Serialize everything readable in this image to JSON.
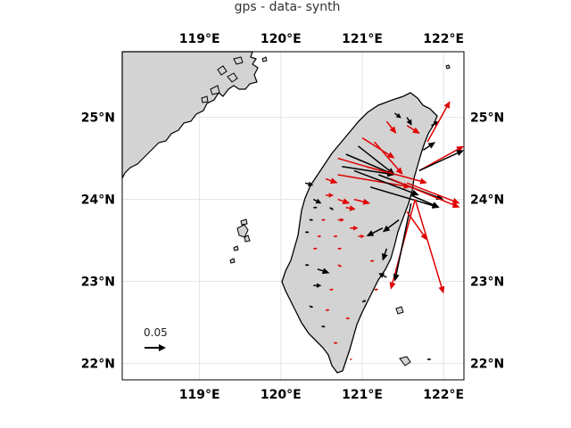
{
  "title": "gps - data- synth",
  "map": {
    "lon_range": [
      118.05,
      122.25
    ],
    "lat_range": [
      21.8,
      25.8
    ],
    "lon_ticks": [
      119,
      120,
      121,
      122
    ],
    "lat_ticks": [
      22,
      23,
      24,
      25
    ],
    "lon_tick_labels": [
      "119°E",
      "120°E",
      "121°E",
      "122°E"
    ],
    "lat_tick_labels": [
      "22°N",
      "23°N",
      "24°N",
      "25°N"
    ],
    "land_color": "#d3d3d3",
    "coast_color": "#000000",
    "grid": true
  },
  "reference_vector": {
    "label": "0.05",
    "value": 0.05
  },
  "colors": {
    "black": "#000000",
    "red": "#e00000"
  },
  "vectors": [
    {
      "lon": 121.4,
      "lat": 25.05,
      "dlon": 0.08,
      "dlat": -0.06,
      "color": "black"
    },
    {
      "lon": 121.55,
      "lat": 25.0,
      "dlon": 0.06,
      "dlat": -0.1,
      "color": "black"
    },
    {
      "lon": 121.3,
      "lat": 24.95,
      "dlon": 0.12,
      "dlat": -0.15,
      "color": "red"
    },
    {
      "lon": 121.55,
      "lat": 24.9,
      "dlon": 0.16,
      "dlat": -0.1,
      "color": "red"
    },
    {
      "lon": 121.85,
      "lat": 24.9,
      "dlon": 0.1,
      "dlat": 0.05,
      "color": "black"
    },
    {
      "lon": 121.8,
      "lat": 24.7,
      "dlon": 0.28,
      "dlat": 0.5,
      "color": "red"
    },
    {
      "lon": 121.75,
      "lat": 24.6,
      "dlon": 0.15,
      "dlat": 0.1,
      "color": "black"
    },
    {
      "lon": 121.7,
      "lat": 24.35,
      "dlon": 0.55,
      "dlat": 0.3,
      "color": "red"
    },
    {
      "lon": 121.7,
      "lat": 24.35,
      "dlon": 0.55,
      "dlat": 0.25,
      "color": "black"
    },
    {
      "lon": 121.0,
      "lat": 24.75,
      "dlon": 0.4,
      "dlat": -0.25,
      "color": "red"
    },
    {
      "lon": 120.95,
      "lat": 24.65,
      "dlon": 0.45,
      "dlat": -0.35,
      "color": "black"
    },
    {
      "lon": 121.15,
      "lat": 24.7,
      "dlon": 0.35,
      "dlat": -0.4,
      "color": "red"
    },
    {
      "lon": 120.8,
      "lat": 24.55,
      "dlon": 0.6,
      "dlat": -0.25,
      "color": "black"
    },
    {
      "lon": 120.7,
      "lat": 24.5,
      "dlon": 0.7,
      "dlat": -0.2,
      "color": "red"
    },
    {
      "lon": 120.75,
      "lat": 24.4,
      "dlon": 0.65,
      "dlat": -0.1,
      "color": "black"
    },
    {
      "lon": 120.7,
      "lat": 24.3,
      "dlon": 0.9,
      "dlat": -0.15,
      "color": "red"
    },
    {
      "lon": 120.9,
      "lat": 24.35,
      "dlon": 0.8,
      "dlat": -0.3,
      "color": "black"
    },
    {
      "lon": 121.05,
      "lat": 24.4,
      "dlon": 0.75,
      "dlat": -0.2,
      "color": "red"
    },
    {
      "lon": 121.2,
      "lat": 24.3,
      "dlon": 0.8,
      "dlat": -0.3,
      "color": "black"
    },
    {
      "lon": 121.35,
      "lat": 24.25,
      "dlon": 0.85,
      "dlat": -0.35,
      "color": "red"
    },
    {
      "lon": 121.1,
      "lat": 24.15,
      "dlon": 0.85,
      "dlat": -0.25,
      "color": "black"
    },
    {
      "lon": 121.55,
      "lat": 24.2,
      "dlon": 0.65,
      "dlat": -0.25,
      "color": "red"
    },
    {
      "lon": 121.6,
      "lat": 24.05,
      "dlon": 0.35,
      "dlat": -0.15,
      "color": "black"
    },
    {
      "lon": 121.65,
      "lat": 24.0,
      "dlon": -0.3,
      "dlat": -1.1,
      "color": "red"
    },
    {
      "lon": 121.65,
      "lat": 24.0,
      "dlon": 0.35,
      "dlat": -1.15,
      "color": "red"
    },
    {
      "lon": 121.6,
      "lat": 23.95,
      "dlon": -0.2,
      "dlat": -0.95,
      "color": "black"
    },
    {
      "lon": 121.55,
      "lat": 23.85,
      "dlon": 0.25,
      "dlat": -0.35,
      "color": "red"
    },
    {
      "lon": 121.45,
      "lat": 23.75,
      "dlon": -0.2,
      "dlat": -0.15,
      "color": "black"
    },
    {
      "lon": 121.25,
      "lat": 23.65,
      "dlon": -0.2,
      "dlat": -0.1,
      "color": "black"
    },
    {
      "lon": 121.3,
      "lat": 23.4,
      "dlon": -0.05,
      "dlat": -0.15,
      "color": "black"
    },
    {
      "lon": 121.3,
      "lat": 23.05,
      "dlon": -0.1,
      "dlat": 0.05,
      "color": "black"
    },
    {
      "lon": 120.4,
      "lat": 24.0,
      "dlon": 0.1,
      "dlat": -0.05,
      "color": "black"
    },
    {
      "lon": 120.4,
      "lat": 23.9,
      "dlon": 0.05,
      "dlat": 0.0,
      "color": "black"
    },
    {
      "lon": 120.55,
      "lat": 24.05,
      "dlon": 0.1,
      "dlat": 0.0,
      "color": "red"
    },
    {
      "lon": 120.7,
      "lat": 24.0,
      "dlon": 0.15,
      "dlat": -0.05,
      "color": "red"
    },
    {
      "lon": 120.9,
      "lat": 24.0,
      "dlon": 0.2,
      "dlat": -0.05,
      "color": "red"
    },
    {
      "lon": 120.6,
      "lat": 23.9,
      "dlon": 0.05,
      "dlat": -0.03,
      "color": "black"
    },
    {
      "lon": 120.8,
      "lat": 23.9,
      "dlon": 0.12,
      "dlat": -0.02,
      "color": "red"
    },
    {
      "lon": 120.7,
      "lat": 23.75,
      "dlon": 0.08,
      "dlat": 0.0,
      "color": "red"
    },
    {
      "lon": 120.5,
      "lat": 23.75,
      "dlon": 0.05,
      "dlat": 0.0,
      "color": "red"
    },
    {
      "lon": 120.35,
      "lat": 23.75,
      "dlon": 0.05,
      "dlat": 0.0,
      "color": "black"
    },
    {
      "lon": 120.85,
      "lat": 23.65,
      "dlon": 0.1,
      "dlat": 0.0,
      "color": "red"
    },
    {
      "lon": 120.65,
      "lat": 23.55,
      "dlon": 0.05,
      "dlat": 0.0,
      "color": "red"
    },
    {
      "lon": 120.45,
      "lat": 23.55,
      "dlon": 0.05,
      "dlat": 0.0,
      "color": "red"
    },
    {
      "lon": 120.3,
      "lat": 23.6,
      "dlon": 0.05,
      "dlat": 0.0,
      "color": "black"
    },
    {
      "lon": 120.95,
      "lat": 23.55,
      "dlon": 0.08,
      "dlat": 0.0,
      "color": "red"
    },
    {
      "lon": 120.7,
      "lat": 23.4,
      "dlon": 0.05,
      "dlat": 0.0,
      "color": "red"
    },
    {
      "lon": 120.4,
      "lat": 23.4,
      "dlon": 0.05,
      "dlat": 0.0,
      "color": "red"
    },
    {
      "lon": 120.3,
      "lat": 23.2,
      "dlon": 0.05,
      "dlat": 0.0,
      "color": "black"
    },
    {
      "lon": 120.45,
      "lat": 23.15,
      "dlon": 0.15,
      "dlat": -0.05,
      "color": "black"
    },
    {
      "lon": 120.7,
      "lat": 23.2,
      "dlon": 0.05,
      "dlat": -0.02,
      "color": "red"
    },
    {
      "lon": 120.4,
      "lat": 22.95,
      "dlon": 0.1,
      "dlat": 0.0,
      "color": "black"
    },
    {
      "lon": 120.6,
      "lat": 22.9,
      "dlon": 0.05,
      "dlat": 0.0,
      "color": "red"
    },
    {
      "lon": 120.35,
      "lat": 22.7,
      "dlon": 0.05,
      "dlat": -0.02,
      "color": "black"
    },
    {
      "lon": 120.55,
      "lat": 22.65,
      "dlon": 0.05,
      "dlat": 0.0,
      "color": "red"
    },
    {
      "lon": 120.5,
      "lat": 22.45,
      "dlon": 0.05,
      "dlat": 0.0,
      "color": "black"
    },
    {
      "lon": 120.8,
      "lat": 22.55,
      "dlon": 0.05,
      "dlat": 0.0,
      "color": "red"
    },
    {
      "lon": 120.65,
      "lat": 22.25,
      "dlon": 0.05,
      "dlat": 0.0,
      "color": "red"
    },
    {
      "lon": 120.85,
      "lat": 22.05,
      "dlon": 0.03,
      "dlat": 0.0,
      "color": "red"
    },
    {
      "lon": 121.0,
      "lat": 22.75,
      "dlon": 0.05,
      "dlat": 0.02,
      "color": "black"
    },
    {
      "lon": 121.15,
      "lat": 22.9,
      "dlon": 0.05,
      "dlat": 0.0,
      "color": "red"
    },
    {
      "lon": 121.1,
      "lat": 23.25,
      "dlon": 0.05,
      "dlat": 0.0,
      "color": "red"
    },
    {
      "lon": 120.3,
      "lat": 24.2,
      "dlon": 0.1,
      "dlat": -0.03,
      "color": "black"
    },
    {
      "lon": 120.55,
      "lat": 24.25,
      "dlon": 0.15,
      "dlat": -0.05,
      "color": "red"
    },
    {
      "lon": 121.8,
      "lat": 22.05,
      "dlon": 0.05,
      "dlat": 0.0,
      "color": "black"
    }
  ]
}
